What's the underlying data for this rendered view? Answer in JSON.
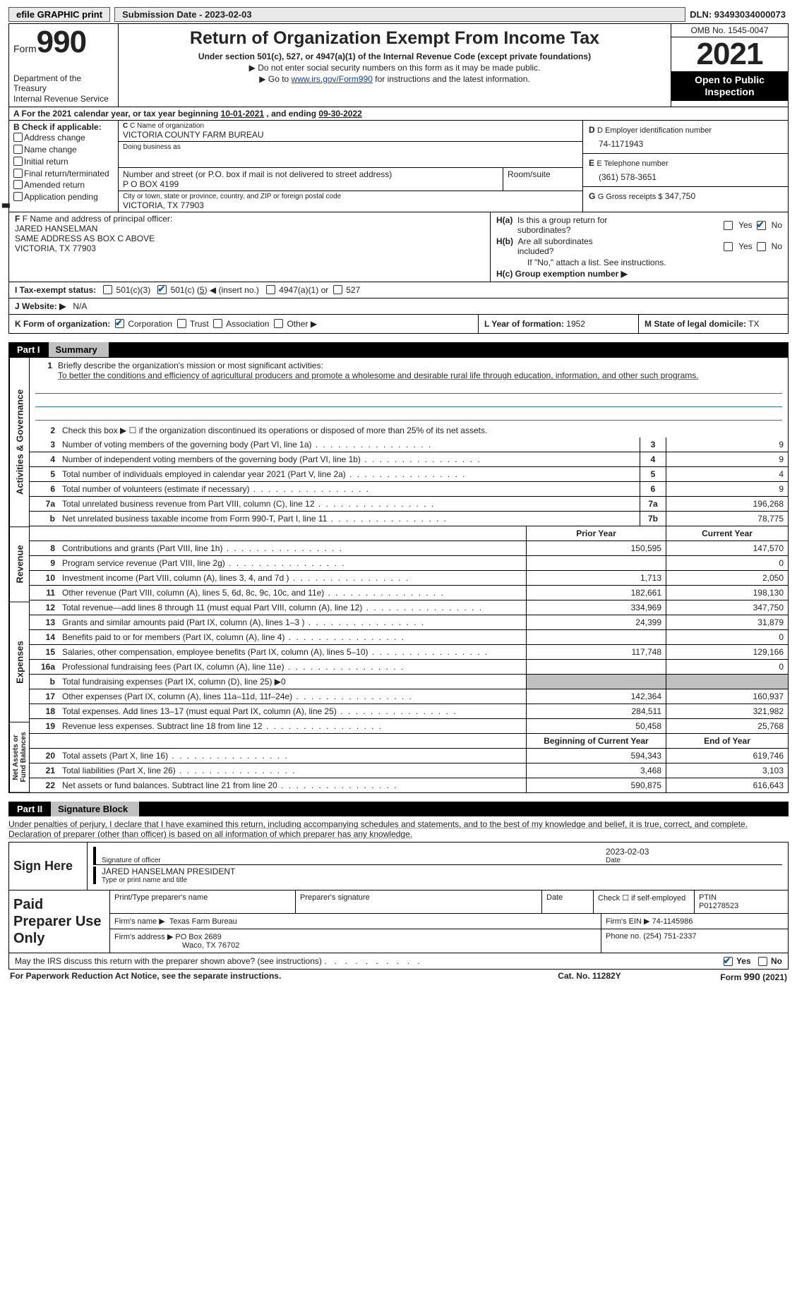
{
  "topbar": {
    "efile_btn": "efile GRAPHIC print",
    "submission": "Submission Date - 2023-02-03",
    "dln": "DLN: 93493034000073"
  },
  "header": {
    "form_word": "Form",
    "form_num": "990",
    "dept": "Department of the Treasury\nInternal Revenue Service",
    "title": "Return of Organization Exempt From Income Tax",
    "subtitle": "Under section 501(c), 527, or 4947(a)(1) of the Internal Revenue Code (except private foundations)",
    "note1": "▶ Do not enter social security numbers on this form as it may be made public.",
    "note2_pre": "▶ Go to ",
    "note2_link": "www.irs.gov/Form990",
    "note2_post": " for instructions and the latest information.",
    "omb": "OMB No. 1545-0047",
    "year": "2021",
    "open": "Open to Public Inspection"
  },
  "period": {
    "line_a_pre": "A For the 2021 calendar year, or tax year beginning ",
    "begin": "10-01-2021",
    "line_a_mid": " , and ending ",
    "end": "09-30-2022"
  },
  "boxB": {
    "label": "B Check if applicable:",
    "opts": [
      "Address change",
      "Name change",
      "Initial return",
      "Final return/terminated",
      "Amended return",
      "Application pending"
    ]
  },
  "boxC": {
    "name_lbl": "C Name of organization",
    "name": "VICTORIA COUNTY FARM BUREAU",
    "dba_lbl": "Doing business as",
    "dba": "",
    "street_lbl": "Number and street (or P.O. box if mail is not delivered to street address)",
    "room_lbl": "Room/suite",
    "street": "P O BOX 4199",
    "city_lbl": "City or town, state or province, country, and ZIP or foreign postal code",
    "city": "VICTORIA, TX  77903"
  },
  "boxDEG": {
    "ein_lbl": "D Employer identification number",
    "ein": "74-1171943",
    "phone_lbl": "E Telephone number",
    "phone": "(361) 578-3651",
    "gross_lbl": "G Gross receipts $",
    "gross": "347,750"
  },
  "boxF": {
    "lbl": "F Name and address of principal officer:",
    "name": "JARED HANSELMAN",
    "addr1": "SAME ADDRESS AS BOX C ABOVE",
    "addr2": "VICTORIA, TX  77903"
  },
  "boxH": {
    "ha_lbl": "H(a)  Is this a group return for subordinates?",
    "hb_lbl": "H(b)  Are all subordinates included?",
    "hb_note": "If \"No,\" attach a list. See instructions.",
    "hc_lbl": "H(c)  Group exemption number ▶",
    "yes": "Yes",
    "no": "No"
  },
  "boxI": {
    "lbl": "I  Tax-exempt status:",
    "opt1": "501(c)(3)",
    "opt2a": "501(c) (",
    "opt2num": "5",
    "opt2b": ") ◀ (insert no.)",
    "opt3": "4947(a)(1) or",
    "opt4": "527"
  },
  "boxJ": {
    "lbl": "J  Website: ▶",
    "val": "N/A"
  },
  "boxK": {
    "lbl": "K Form of organization:",
    "opt_corp": "Corporation",
    "opt_trust": "Trust",
    "opt_assoc": "Association",
    "opt_other": "Other ▶"
  },
  "boxL": {
    "lbl": "L Year of formation:",
    "val": "1952"
  },
  "boxM": {
    "lbl": "M State of legal domicile:",
    "val": "TX"
  },
  "part1": {
    "num": "Part I",
    "title": "Summary",
    "vtab_act": "Activities & Governance",
    "vtab_rev": "Revenue",
    "vtab_exp": "Expenses",
    "vtab_net": "Net Assets or\nFund Balances",
    "line1_lbl": "Briefly describe the organization's mission or most significant activities:",
    "line1_val": "To better the conditions and efficiency of agricultural producers and promote a wholesome and desirable rural life through education, information, and other such programs.",
    "line2_lbl": "Check this box ▶ ☐ if the organization discontinued its operations or disposed of more than 25% of its net assets.",
    "hdr_prior": "Prior Year",
    "hdr_current": "Current Year",
    "hdr_begin": "Beginning of Current Year",
    "hdr_end": "End of Year",
    "rows_gov": [
      {
        "n": "3",
        "d": "Number of voting members of the governing body (Part VI, line 1a)",
        "b": "3",
        "v": "9"
      },
      {
        "n": "4",
        "d": "Number of independent voting members of the governing body (Part VI, line 1b)",
        "b": "4",
        "v": "9"
      },
      {
        "n": "5",
        "d": "Total number of individuals employed in calendar year 2021 (Part V, line 2a)",
        "b": "5",
        "v": "4"
      },
      {
        "n": "6",
        "d": "Total number of volunteers (estimate if necessary)",
        "b": "6",
        "v": "9"
      },
      {
        "n": "7a",
        "d": "Total unrelated business revenue from Part VIII, column (C), line 12",
        "b": "7a",
        "v": "196,268"
      },
      {
        "n": "b",
        "d": "Net unrelated business taxable income from Form 990-T, Part I, line 11",
        "b": "7b",
        "v": "78,775"
      }
    ],
    "rows_rev": [
      {
        "n": "8",
        "d": "Contributions and grants (Part VIII, line 1h)",
        "p": "150,595",
        "c": "147,570"
      },
      {
        "n": "9",
        "d": "Program service revenue (Part VIII, line 2g)",
        "p": "",
        "c": "0"
      },
      {
        "n": "10",
        "d": "Investment income (Part VIII, column (A), lines 3, 4, and 7d )",
        "p": "1,713",
        "c": "2,050"
      },
      {
        "n": "11",
        "d": "Other revenue (Part VIII, column (A), lines 5, 6d, 8c, 9c, 10c, and 11e)",
        "p": "182,661",
        "c": "198,130"
      },
      {
        "n": "12",
        "d": "Total revenue—add lines 8 through 11 (must equal Part VIII, column (A), line 12)",
        "p": "334,969",
        "c": "347,750"
      }
    ],
    "rows_exp": [
      {
        "n": "13",
        "d": "Grants and similar amounts paid (Part IX, column (A), lines 1–3 )",
        "p": "24,399",
        "c": "31,879"
      },
      {
        "n": "14",
        "d": "Benefits paid to or for members (Part IX, column (A), line 4)",
        "p": "",
        "c": "0"
      },
      {
        "n": "15",
        "d": "Salaries, other compensation, employee benefits (Part IX, column (A), lines 5–10)",
        "p": "117,748",
        "c": "129,166"
      },
      {
        "n": "16a",
        "d": "Professional fundraising fees (Part IX, column (A), line 11e)",
        "p": "",
        "c": "0"
      },
      {
        "n": "b",
        "d": "Total fundraising expenses (Part IX, column (D), line 25) ▶0",
        "p": "SHADE",
        "c": "SHADE"
      },
      {
        "n": "17",
        "d": "Other expenses (Part IX, column (A), lines 11a–11d, 11f–24e)",
        "p": "142,364",
        "c": "160,937"
      },
      {
        "n": "18",
        "d": "Total expenses. Add lines 13–17 (must equal Part IX, column (A), line 25)",
        "p": "284,511",
        "c": "321,982"
      },
      {
        "n": "19",
        "d": "Revenue less expenses. Subtract line 18 from line 12",
        "p": "50,458",
        "c": "25,768"
      }
    ],
    "rows_net": [
      {
        "n": "20",
        "d": "Total assets (Part X, line 16)",
        "p": "594,343",
        "c": "619,746"
      },
      {
        "n": "21",
        "d": "Total liabilities (Part X, line 26)",
        "p": "3,468",
        "c": "3,103"
      },
      {
        "n": "22",
        "d": "Net assets or fund balances. Subtract line 21 from line 20",
        "p": "590,875",
        "c": "616,643"
      }
    ]
  },
  "part2": {
    "num": "Part II",
    "title": "Signature Block",
    "intro": "Under penalties of perjury, I declare that I have examined this return, including accompanying schedules and statements, and to the best of my knowledge and belief, it is true, correct, and complete. Declaration of preparer (other than officer) is based on all information of which preparer has any knowledge.",
    "sign_here": "Sign Here",
    "sig_officer_lbl": "Signature of officer",
    "sig_date_lbl": "Date",
    "sig_date": "2023-02-03",
    "type_name_lbl": "Type or print name and title",
    "type_name": "JARED HANSELMAN  PRESIDENT",
    "paid_lbl": "Paid Preparer Use Only",
    "prep_name_lbl": "Print/Type preparer's name",
    "prep_sig_lbl": "Preparer's signature",
    "prep_date_lbl": "Date",
    "prep_check_lbl": "Check ☐ if self-employed",
    "ptin_lbl": "PTIN",
    "ptin": "P01278523",
    "firm_name_lbl": "Firm's name    ▶",
    "firm_name": "Texas Farm Bureau",
    "firm_ein_lbl": "Firm's EIN ▶",
    "firm_ein": "74-1145986",
    "firm_addr_lbl": "Firm's address ▶",
    "firm_addr1": "PO Box 2689",
    "firm_addr2": "Waco, TX  76702",
    "firm_phone_lbl": "Phone no.",
    "firm_phone": "(254) 751-2337",
    "discuss": "May the IRS discuss this return with the preparer shown above? (see instructions)",
    "yes": "Yes",
    "no": "No"
  },
  "footer": {
    "pra": "For Paperwork Reduction Act Notice, see the separate instructions.",
    "cat": "Cat. No. 11282Y",
    "form": "Form 990 (2021)"
  }
}
